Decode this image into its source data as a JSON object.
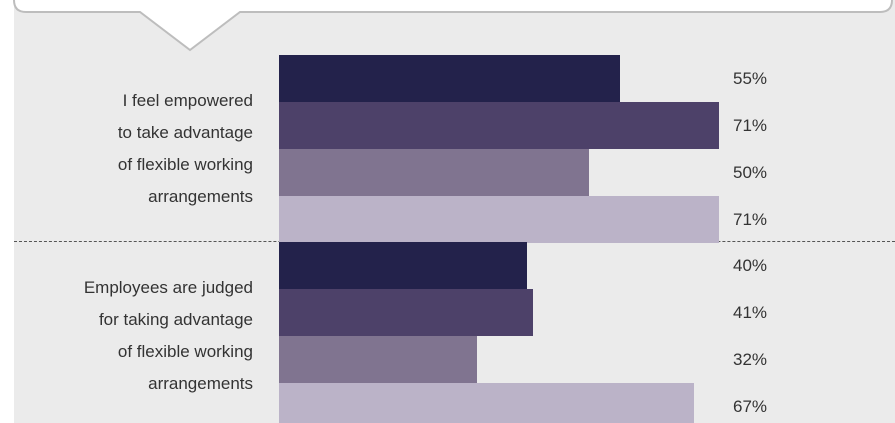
{
  "chart_data": {
    "type": "bar",
    "orientation": "horizontal",
    "categories": [
      "I feel empowered\nto take advantage\nof flexible working\narrangements",
      "Employees are judged\nfor taking advantage\nof flexible working\narrangements"
    ],
    "series": [
      {
        "color": "#23224b",
        "values": [
          55,
          40
        ],
        "value_labels": [
          "55%",
          "40%"
        ]
      },
      {
        "color": "#4d4169",
        "values": [
          71,
          41
        ],
        "value_labels": [
          "71%",
          "41%"
        ]
      },
      {
        "color": "#807490",
        "values": [
          50,
          32
        ],
        "value_labels": [
          "50%",
          "32%"
        ]
      },
      {
        "color": "#bbb3c8",
        "values": [
          71,
          67
        ],
        "value_labels": [
          "71%",
          "67%"
        ]
      }
    ]
  }
}
